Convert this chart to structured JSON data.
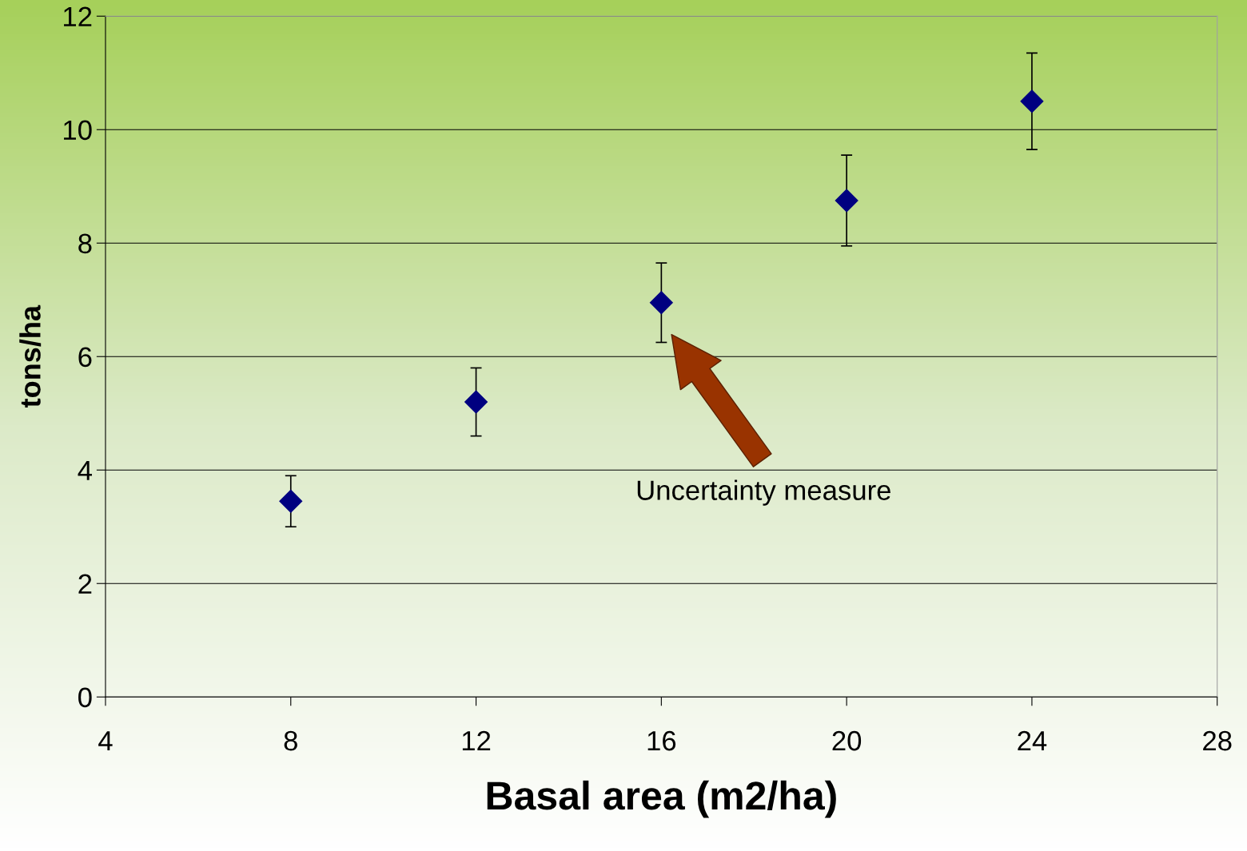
{
  "chart_data": {
    "type": "scatter",
    "x": [
      8,
      12,
      16,
      20,
      24
    ],
    "series": [
      {
        "color": "#000080",
        "values": [
          3.45,
          5.2,
          6.95,
          8.75,
          10.5
        ],
        "errors": [
          0.45,
          0.6,
          0.7,
          0.8,
          0.85
        ]
      }
    ],
    "xlabel": "Basal area (m2/ha)",
    "ylabel": "tons/ha",
    "xlim": [
      4,
      28
    ],
    "xticks": [
      4,
      8,
      12,
      16,
      20,
      24,
      28
    ],
    "ylim": [
      0,
      12
    ],
    "yticks": [
      0,
      2,
      4,
      6,
      8,
      10,
      12
    ],
    "grid": "y",
    "marker": "diamond",
    "legend": false,
    "annotations": [
      "Uncertainty measure"
    ]
  }
}
